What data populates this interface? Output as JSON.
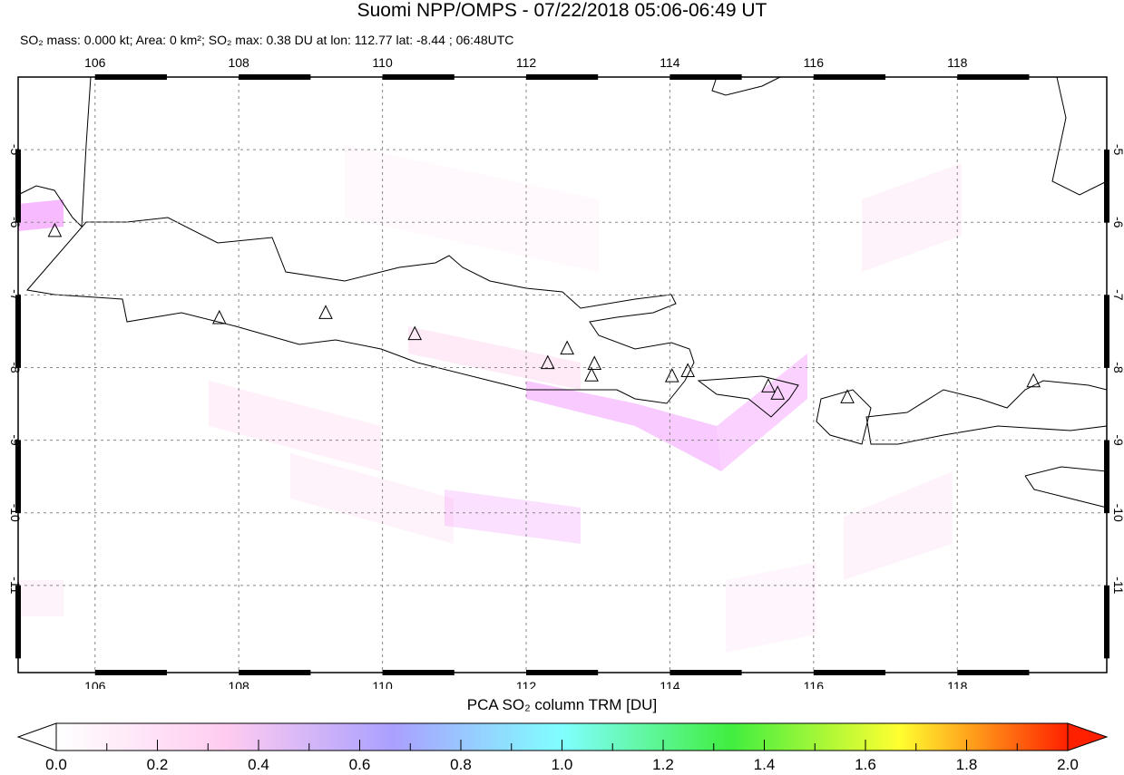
{
  "title": "Suomi NPP/OMPS - 07/22/2018 05:06-06:49 UT",
  "subtitle": {
    "mass": "SO₂ mass: 0.000 kt; Area: 0 km²; SO₂ max: 0.38 DU at lon: 112.77 lat: -8.44 ; 06:48UTC"
  },
  "map": {
    "lon_range": [
      104.93,
      120.08
    ],
    "lat_range": [
      -12.2,
      -4.0
    ],
    "lon_ticks": [
      "106",
      "108",
      "110",
      "112",
      "114",
      "116",
      "118"
    ],
    "lat_ticks": [
      "-5",
      "-6",
      "-7",
      "-8",
      "-9",
      "-10",
      "-11"
    ],
    "grid": true,
    "volcano_markers": [
      [
        105.44,
        -6.12
      ],
      [
        107.73,
        -7.32
      ],
      [
        109.21,
        -7.25
      ],
      [
        110.45,
        -7.54
      ],
      [
        112.3,
        -7.94
      ],
      [
        112.57,
        -7.74
      ],
      [
        112.95,
        -7.95
      ],
      [
        112.91,
        -8.11
      ],
      [
        114.03,
        -8.12
      ],
      [
        114.25,
        -8.05
      ],
      [
        115.37,
        -8.26
      ],
      [
        115.5,
        -8.36
      ],
      [
        116.47,
        -8.41
      ],
      [
        119.06,
        -8.19
      ]
    ]
  },
  "colorbar": {
    "title": "PCA SO₂ column TRM [DU]",
    "labels": [
      "0.0",
      "0.2",
      "0.4",
      "0.6",
      "0.8",
      "1.0",
      "1.2",
      "1.4",
      "1.6",
      "1.8",
      "2.0"
    ],
    "range": [
      0,
      2
    ],
    "colors": [
      "#ffffff",
      "#ffccf0",
      "#aaa0ff",
      "#80ffff",
      "#40ee40",
      "#ffff30",
      "#ff2000"
    ]
  }
}
